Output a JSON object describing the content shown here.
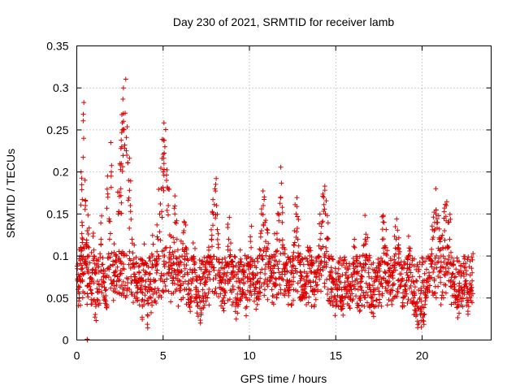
{
  "chart_data": {
    "type": "scatter",
    "title": "Day 230 of 2021, SRMTID for receiver lamb",
    "xlabel": "GPS time / hours",
    "ylabel": "SRMTID / TECUs",
    "xlim": [
      0,
      24
    ],
    "ylim": [
      0,
      0.35
    ],
    "xticks": [
      0,
      5,
      10,
      15,
      20
    ],
    "xtick_labels": [
      "0",
      "5",
      "10",
      "15",
      "20"
    ],
    "yticks": [
      0,
      0.05,
      0.1,
      0.15,
      0.2,
      0.25,
      0.3,
      0.35
    ],
    "ytick_labels": [
      "0",
      "0.05",
      "0.1",
      "0.15",
      "0.2",
      "0.25",
      "0.3",
      "0.35"
    ],
    "grid": true,
    "marker": "+",
    "color": "#dd0000",
    "series": [
      {
        "name": "SRMTID",
        "x": [
          0.0,
          0.08,
          0.15,
          0.2,
          0.25,
          0.3,
          0.35,
          0.4,
          0.5,
          0.55,
          0.6,
          0.7,
          0.8,
          0.9,
          1.0,
          1.1,
          1.2,
          1.3,
          1.4,
          1.5,
          1.6,
          1.7,
          1.8,
          1.9,
          2.0,
          2.1,
          2.2,
          2.3,
          2.4,
          2.5,
          2.55,
          2.6,
          2.65,
          2.7,
          2.8,
          2.9,
          3.0,
          3.1,
          3.2,
          3.3,
          3.4,
          3.5,
          3.6,
          3.7,
          3.8,
          3.9,
          4.0,
          4.1,
          4.2,
          4.3,
          4.4,
          4.5,
          4.6,
          4.7,
          4.8,
          4.9,
          5.0,
          5.05,
          5.1,
          5.2,
          5.3,
          5.4,
          5.5,
          5.6,
          5.7,
          5.8,
          5.9,
          6.0,
          6.1,
          6.2,
          6.3,
          6.4,
          6.5,
          6.6,
          6.7,
          6.8,
          6.9,
          7.0,
          7.1,
          7.2,
          7.3,
          7.4,
          7.5,
          7.6,
          7.7,
          7.8,
          7.9,
          8.0,
          8.1,
          8.2,
          8.3,
          8.4,
          8.5,
          8.6,
          8.7,
          8.8,
          8.9,
          9.0,
          9.1,
          9.2,
          9.3,
          9.4,
          9.5,
          9.6,
          9.7,
          9.8,
          9.9,
          10.0,
          10.1,
          10.2,
          10.3,
          10.4,
          10.5,
          10.6,
          10.7,
          10.8,
          10.9,
          11.0,
          11.1,
          11.2,
          11.3,
          11.4,
          11.5,
          11.6,
          11.7,
          11.8,
          11.9,
          12.0,
          12.1,
          12.2,
          12.3,
          12.4,
          12.5,
          12.6,
          12.7,
          12.8,
          12.9,
          13.0,
          13.1,
          13.2,
          13.3,
          13.4,
          13.5,
          13.6,
          13.7,
          13.8,
          13.9,
          14.0,
          14.1,
          14.2,
          14.3,
          14.4,
          14.5,
          14.6,
          14.7,
          14.8,
          14.9,
          15.0,
          15.1,
          15.2,
          15.3,
          15.4,
          15.5,
          15.6,
          15.7,
          15.8,
          15.9,
          16.0,
          16.1,
          16.2,
          16.3,
          16.4,
          16.5,
          16.6,
          16.7,
          16.8,
          16.9,
          17.0,
          17.1,
          17.2,
          17.3,
          17.4,
          17.5,
          17.6,
          17.7,
          17.8,
          17.9,
          18.0,
          18.1,
          18.2,
          18.3,
          18.4,
          18.5,
          18.6,
          18.7,
          18.8,
          18.9,
          19.0,
          19.1,
          19.2,
          19.3,
          19.4,
          19.5,
          19.6,
          19.7,
          19.8,
          19.9,
          20.0,
          20.1,
          20.2,
          20.3,
          20.4,
          20.5,
          20.6,
          20.7,
          20.8,
          20.9,
          21.0,
          21.1,
          21.2,
          21.3,
          21.4,
          21.5,
          21.6,
          21.7,
          21.8,
          21.9,
          22.0,
          22.1,
          22.2,
          22.3,
          22.4,
          22.5,
          22.6,
          22.7,
          22.8,
          22.9,
          23.0,
          23.1,
          0.05,
          0.1,
          0.2,
          0.14,
          0.12,
          0.24,
          0.16,
          0.09,
          0.13,
          0.11,
          0.06,
          0.08,
          0.1,
          0.04,
          0.07,
          0.06,
          0.12,
          0.09,
          0.05,
          0.06,
          0.17,
          0.12,
          0.2,
          0.09,
          0.08,
          0.1,
          0.15,
          0.21,
          0.18,
          0.23,
          0.25,
          0.3,
          0.27,
          0.22,
          0.19,
          0.16,
          0.12,
          0.09,
          0.07,
          0.05,
          0.08,
          0.06,
          0.04,
          0.09,
          0.07,
          0.03,
          0.06,
          0.05,
          0.1,
          0.07,
          0.09,
          0.12,
          0.15,
          0.18,
          0.2,
          0.21,
          0.23,
          0.19,
          0.16,
          0.11,
          0.08,
          0.1,
          0.14,
          0.12,
          0.09,
          0.07,
          0.1,
          0.13,
          0.11,
          0.08,
          0.06,
          0.05,
          0.07,
          0.09,
          0.06,
          0.04,
          0.05,
          0.03,
          0.06,
          0.08,
          0.07,
          0.1,
          0.09,
          0.12,
          0.15,
          0.18,
          0.16,
          0.11,
          0.08,
          0.06,
          0.05,
          0.07,
          0.09,
          0.12,
          0.1,
          0.08,
          0.06,
          0.04,
          0.05,
          0.07,
          0.09,
          0.06,
          0.08,
          0.05,
          0.07,
          0.09,
          0.11,
          0.08,
          0.06,
          0.05,
          0.07,
          0.1,
          0.13,
          0.16,
          0.14,
          0.11,
          0.09,
          0.07,
          0.06,
          0.08,
          0.1,
          0.12,
          0.15,
          0.17,
          0.14,
          0.11,
          0.09,
          0.07,
          0.06,
          0.08,
          0.1,
          0.13,
          0.15,
          0.12,
          0.1,
          0.08,
          0.06,
          0.05,
          0.07,
          0.09,
          0.11,
          0.09,
          0.07,
          0.06,
          0.08,
          0.1,
          0.12,
          0.14,
          0.17,
          0.15,
          0.12,
          0.1,
          0.08,
          0.06,
          0.05,
          0.04,
          0.06,
          0.07,
          0.05,
          0.04,
          0.06,
          0.08,
          0.07,
          0.05,
          0.06,
          0.09,
          0.11,
          0.08,
          0.06,
          0.05,
          0.07,
          0.09,
          0.12,
          0.1,
          0.08,
          0.06,
          0.05,
          0.04,
          0.06,
          0.08,
          0.07,
          0.09,
          0.12,
          0.14,
          0.11,
          0.09,
          0.07,
          0.06,
          0.08,
          0.1,
          0.12,
          0.11,
          0.09,
          0.07,
          0.05,
          0.06,
          0.08,
          0.1,
          0.09,
          0.07,
          0.05,
          0.04,
          0.03,
          0.02,
          0.03,
          0.04,
          0.03,
          0.05,
          0.06,
          0.08,
          0.1,
          0.12,
          0.13,
          0.15,
          0.14,
          0.12,
          0.1,
          0.11,
          0.13,
          0.16,
          0.14,
          0.12,
          0.09,
          0.07,
          0.06,
          0.05,
          0.04,
          0.05,
          0.06,
          0.08,
          0.07,
          0.05,
          0.04,
          0.06,
          0.08
        ]
      }
    ]
  }
}
